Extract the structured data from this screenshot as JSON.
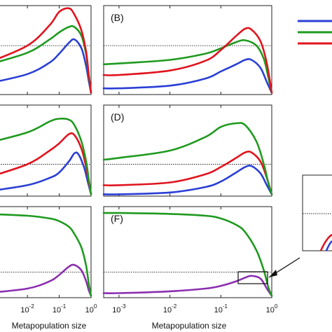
{
  "chart_data": {
    "type": "line",
    "x_scale": "log",
    "xlim": [
      0.0005,
      1
    ],
    "xlabel": "Metapopulation size",
    "x_ticks": [
      {
        "value": 0.001,
        "base": "10",
        "exp": "-3"
      },
      {
        "value": 0.01,
        "base": "10",
        "exp": "-2"
      },
      {
        "value": 0.1,
        "base": "10",
        "exp": "-1"
      },
      {
        "value": 1,
        "base": "10",
        "exp": "0"
      }
    ],
    "colors": {
      "blue": "#2a3fd6",
      "green": "#1f9a1f",
      "red": "#e0141e",
      "purple": "#8b2fb0",
      "reference": "#222222"
    },
    "panels": [
      {
        "label": "",
        "reference_y": 0.55,
        "series": [
          {
            "color": "blue",
            "x": [
              0.0005,
              0.01,
              0.05,
              0.1,
              0.2,
              0.3,
              0.5,
              0.7,
              0.85,
              1
            ],
            "y": [
              0.12,
              0.23,
              0.36,
              0.46,
              0.58,
              0.62,
              0.52,
              0.32,
              0.15,
              0.02
            ]
          },
          {
            "color": "green",
            "x": [
              0.0005,
              0.01,
              0.05,
              0.1,
              0.2,
              0.3,
              0.5,
              0.7,
              0.85,
              1
            ],
            "y": [
              0.33,
              0.47,
              0.62,
              0.7,
              0.76,
              0.76,
              0.66,
              0.45,
              0.2,
              0.02
            ]
          },
          {
            "color": "red",
            "x": [
              0.0005,
              0.01,
              0.05,
              0.1,
              0.2,
              0.3,
              0.5,
              0.7,
              0.85,
              1
            ],
            "y": [
              0.35,
              0.55,
              0.78,
              0.93,
              0.97,
              0.9,
              0.72,
              0.48,
              0.22,
              0.02
            ]
          }
        ]
      },
      {
        "label": "(B)",
        "reference_y": 0.55,
        "series": [
          {
            "color": "blue",
            "x": [
              0.0005,
              0.001,
              0.01,
              0.05,
              0.1,
              0.2,
              0.3,
              0.4,
              0.6,
              0.8,
              1
            ],
            "y": [
              0.07,
              0.07,
              0.1,
              0.18,
              0.26,
              0.34,
              0.39,
              0.39,
              0.3,
              0.14,
              0.02
            ]
          },
          {
            "color": "green",
            "x": [
              0.0005,
              0.001,
              0.01,
              0.05,
              0.1,
              0.2,
              0.3,
              0.5,
              0.7,
              0.85,
              1
            ],
            "y": [
              0.34,
              0.35,
              0.39,
              0.46,
              0.52,
              0.59,
              0.61,
              0.55,
              0.4,
              0.2,
              0.02
            ]
          },
          {
            "color": "red",
            "x": [
              0.0005,
              0.001,
              0.01,
              0.05,
              0.1,
              0.2,
              0.3,
              0.4,
              0.6,
              0.8,
              1
            ],
            "y": [
              0.22,
              0.22,
              0.27,
              0.38,
              0.5,
              0.66,
              0.74,
              0.73,
              0.6,
              0.35,
              0.02
            ]
          }
        ]
      },
      {
        "label": "",
        "reference_y": 0.35,
        "series": [
          {
            "color": "blue",
            "x": [
              0.0005,
              0.01,
              0.05,
              0.1,
              0.2,
              0.3,
              0.4,
              0.6,
              0.8,
              1
            ],
            "y": [
              0.05,
              0.12,
              0.2,
              0.26,
              0.38,
              0.47,
              0.46,
              0.32,
              0.15,
              0.02
            ]
          },
          {
            "color": "red",
            "x": [
              0.0005,
              0.01,
              0.05,
              0.1,
              0.2,
              0.3,
              0.5,
              0.7,
              0.85,
              1
            ],
            "y": [
              0.2,
              0.35,
              0.5,
              0.58,
              0.68,
              0.67,
              0.52,
              0.32,
              0.15,
              0.02
            ]
          },
          {
            "color": "green",
            "x": [
              0.0005,
              0.01,
              0.05,
              0.1,
              0.2,
              0.3,
              0.5,
              0.7,
              0.85,
              1
            ],
            "y": [
              0.58,
              0.7,
              0.82,
              0.85,
              0.84,
              0.78,
              0.6,
              0.38,
              0.18,
              0.02
            ]
          }
        ]
      },
      {
        "label": "(D)",
        "reference_y": 0.35,
        "series": [
          {
            "color": "blue",
            "x": [
              0.0005,
              0.001,
              0.01,
              0.05,
              0.1,
              0.2,
              0.3,
              0.4,
              0.6,
              0.8,
              1
            ],
            "y": [
              0.02,
              0.02,
              0.04,
              0.1,
              0.16,
              0.26,
              0.32,
              0.33,
              0.25,
              0.12,
              0.02
            ]
          },
          {
            "color": "red",
            "x": [
              0.0005,
              0.001,
              0.01,
              0.05,
              0.1,
              0.2,
              0.3,
              0.4,
              0.6,
              0.8,
              1
            ],
            "y": [
              0.12,
              0.12,
              0.15,
              0.24,
              0.32,
              0.42,
              0.48,
              0.48,
              0.38,
              0.2,
              0.02
            ]
          },
          {
            "color": "green",
            "x": [
              0.0005,
              0.001,
              0.01,
              0.05,
              0.1,
              0.2,
              0.3,
              0.5,
              0.7,
              0.85,
              1
            ],
            "y": [
              0.4,
              0.42,
              0.5,
              0.65,
              0.76,
              0.8,
              0.78,
              0.6,
              0.35,
              0.15,
              0.02
            ]
          }
        ]
      },
      {
        "label": "",
        "reference_y": 0.28,
        "series": [
          {
            "color": "purple",
            "x": [
              0.0005,
              0.01,
              0.05,
              0.1,
              0.2,
              0.3,
              0.5,
              0.7,
              0.85,
              1
            ],
            "y": [
              0.05,
              0.1,
              0.18,
              0.25,
              0.34,
              0.36,
              0.3,
              0.18,
              0.08,
              0.02
            ]
          },
          {
            "color": "green",
            "x": [
              0.0005,
              0.01,
              0.05,
              0.1,
              0.2,
              0.3,
              0.5,
              0.7,
              0.85,
              1
            ],
            "y": [
              0.92,
              0.9,
              0.87,
              0.84,
              0.78,
              0.7,
              0.55,
              0.35,
              0.15,
              0.02
            ]
          }
        ]
      },
      {
        "label": "(F)",
        "reference_y": 0.28,
        "series": [
          {
            "color": "purple",
            "x": [
              0.0005,
              0.001,
              0.01,
              0.05,
              0.1,
              0.2,
              0.3,
              0.4,
              0.6,
              0.8,
              1
            ],
            "y": [
              0.05,
              0.05,
              0.07,
              0.1,
              0.13,
              0.18,
              0.22,
              0.24,
              0.21,
              0.1,
              0.02
            ]
          },
          {
            "color": "green",
            "x": [
              0.0005,
              0.001,
              0.01,
              0.05,
              0.1,
              0.2,
              0.3,
              0.5,
              0.7,
              0.85,
              1
            ],
            "y": [
              0.93,
              0.93,
              0.92,
              0.9,
              0.87,
              0.8,
              0.72,
              0.52,
              0.3,
              0.12,
              0.02
            ]
          }
        ]
      }
    ],
    "legend": {
      "placement": "top-right",
      "colors": [
        "blue",
        "green",
        "red"
      ]
    },
    "inset": {
      "placement": "bottom-right",
      "colors": [
        "red",
        "blue"
      ]
    }
  }
}
